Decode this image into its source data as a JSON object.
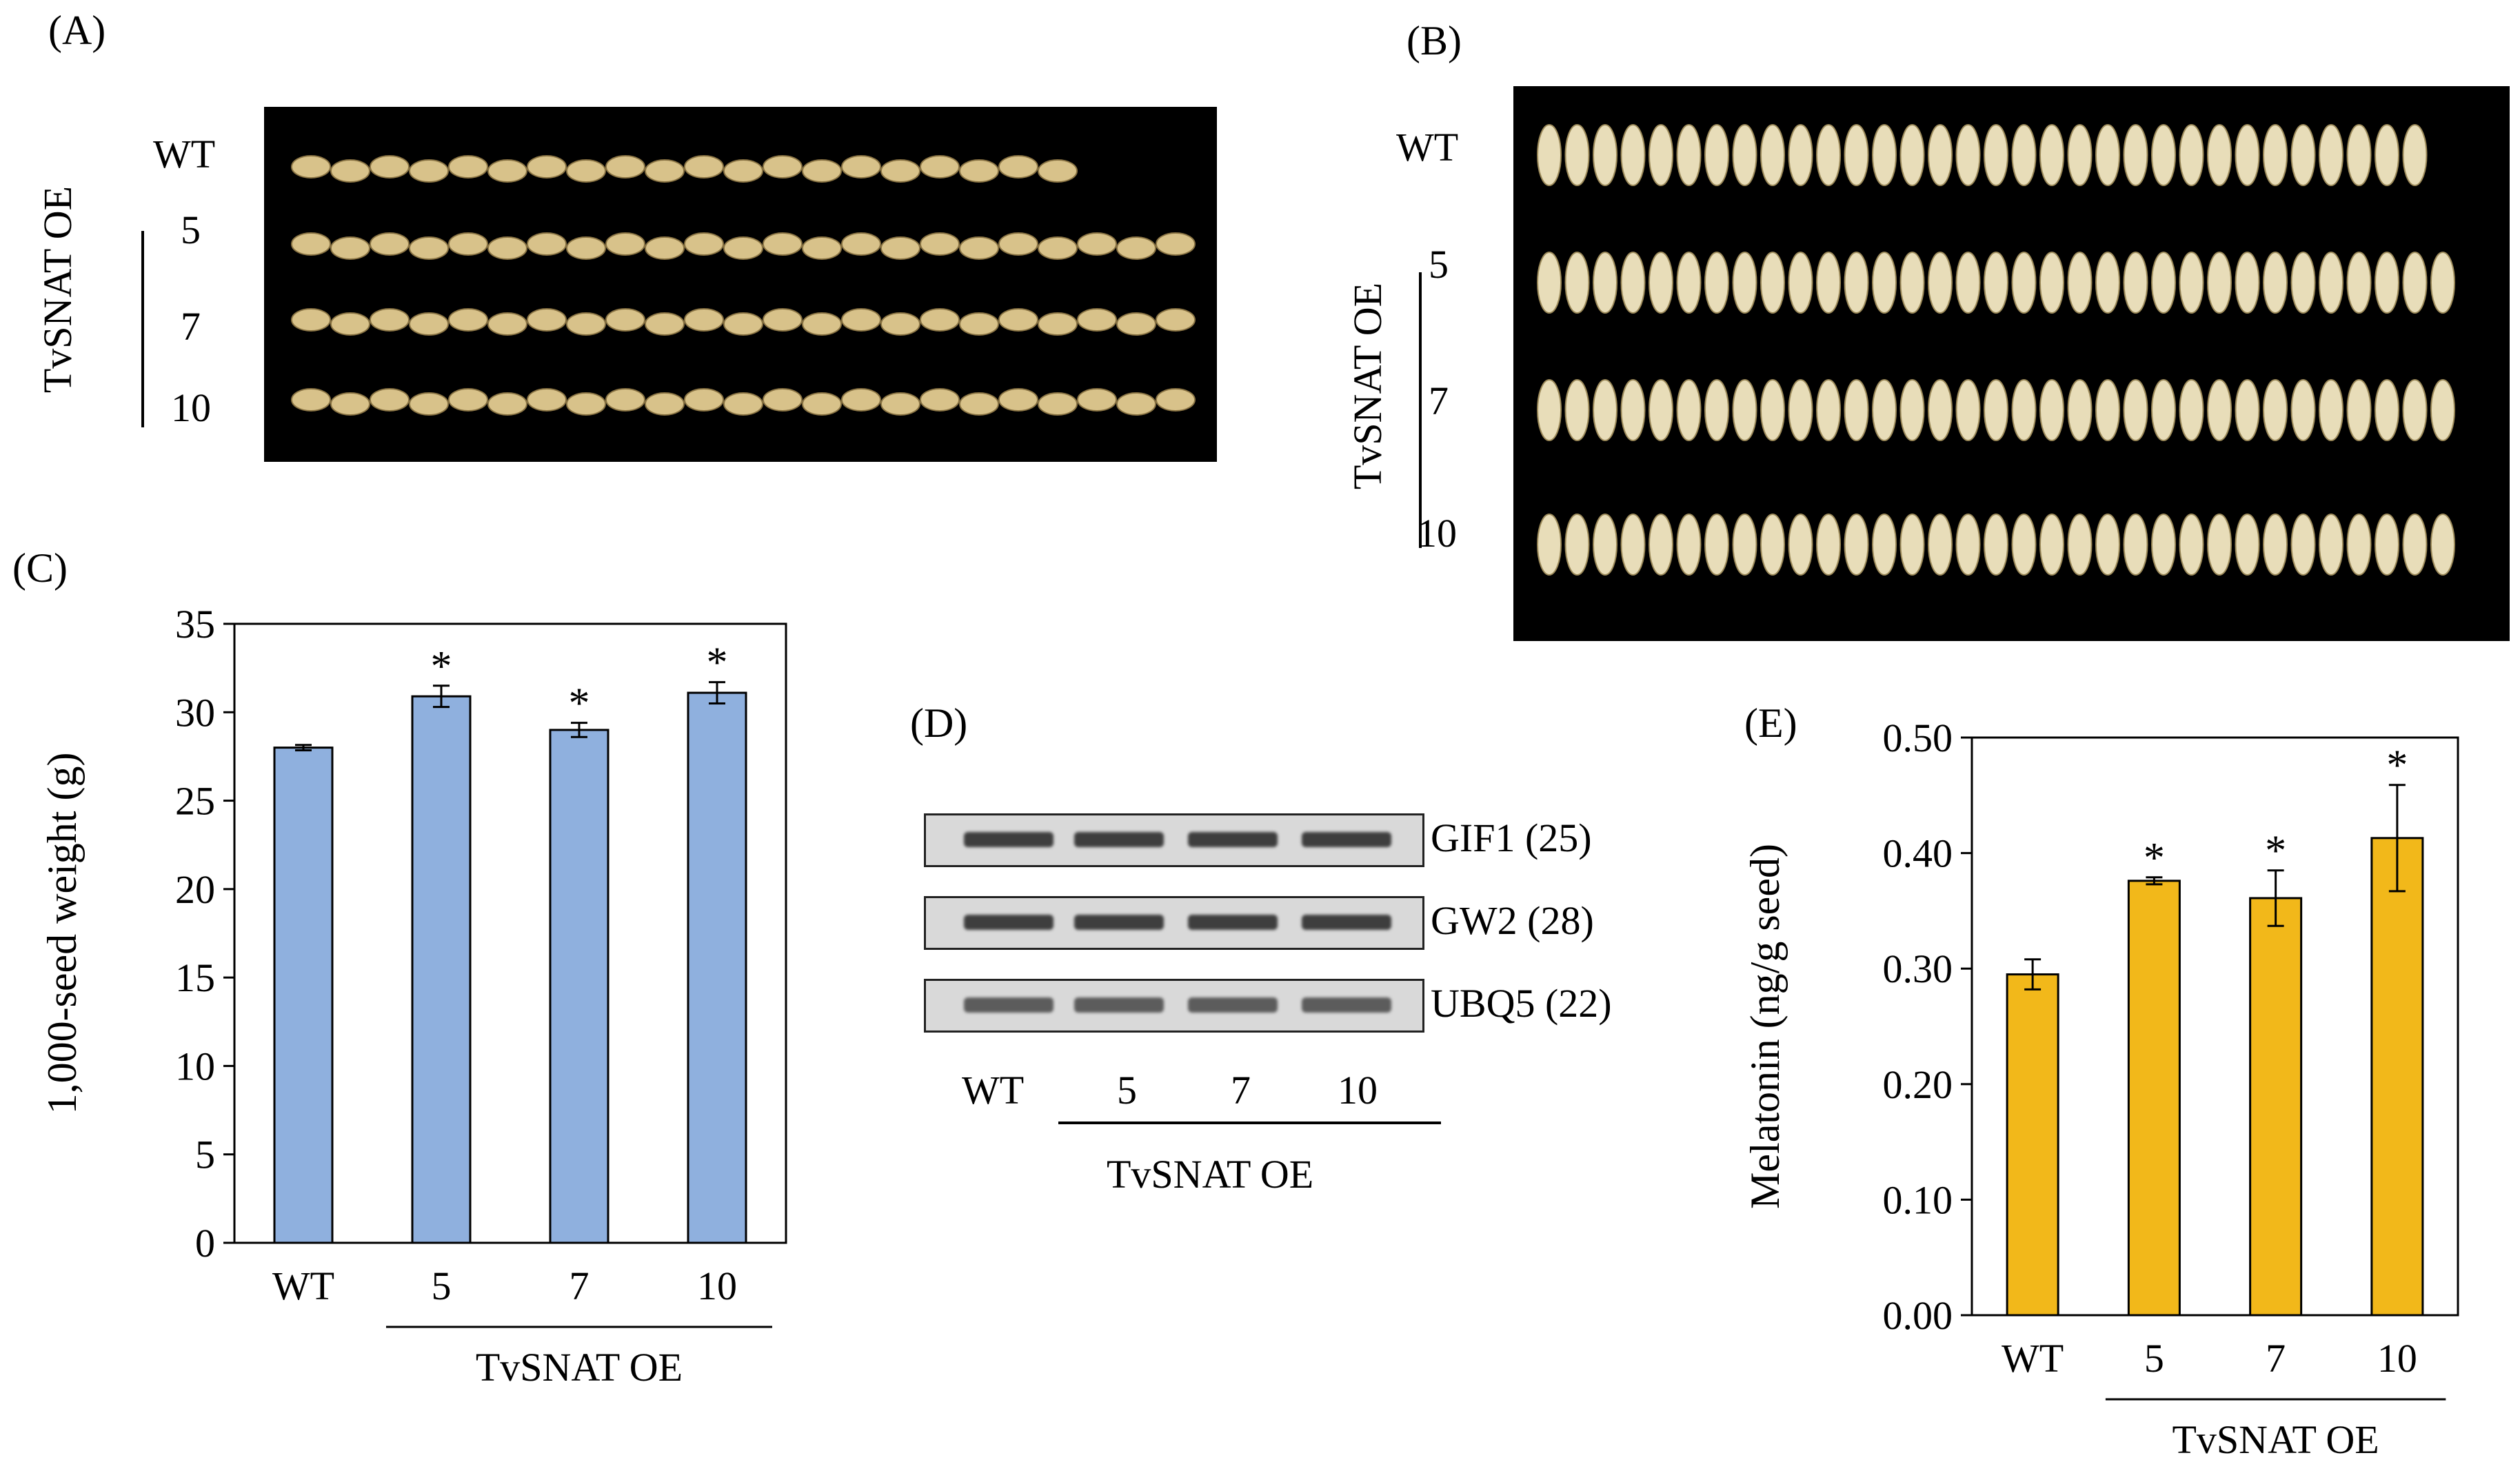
{
  "panels": {
    "A": {
      "label": "(A)",
      "rows": [
        "WT",
        "5",
        "7",
        "10"
      ],
      "group_label": "TvSNAT OE",
      "grain_counts": [
        20,
        23,
        23,
        23
      ],
      "grain_color": "#d8c28a"
    },
    "B": {
      "label": "(B)",
      "rows": [
        "WT",
        "5",
        "7",
        "10"
      ],
      "group_label": "TvSNAT OE",
      "grain_counts": [
        32,
        33,
        33,
        33
      ],
      "grain_color": "#e8ddb9"
    },
    "C": {
      "label": "(C)"
    },
    "D": {
      "label": "(D)",
      "bands": [
        "GIF1 (25)",
        "GW2 (28)",
        "UBQ5 (22)"
      ],
      "lanes": [
        "WT",
        "5",
        "7",
        "10"
      ],
      "group_label": "TvSNAT OE"
    },
    "E": {
      "label": "(E)"
    }
  },
  "chart_data": [
    {
      "type": "bar",
      "title": "",
      "ylabel": "1,000-seed weight (g)",
      "xlabel": "TvSNAT OE",
      "categories": [
        "WT",
        "5",
        "7",
        "10"
      ],
      "values": [
        28.0,
        30.9,
        29.0,
        31.1
      ],
      "errors": [
        0.15,
        0.6,
        0.4,
        0.6
      ],
      "significance": [
        "",
        "*",
        "*",
        "*"
      ],
      "ylim": [
        0,
        35
      ],
      "yticks": [
        "0",
        "5",
        "10",
        "15",
        "20",
        "25",
        "30",
        "35"
      ],
      "bar_color": "#8fb0de",
      "grid": false
    },
    {
      "type": "bar",
      "title": "",
      "ylabel": "Melatonin (ng/g seed)",
      "xlabel": "TvSNAT OE",
      "categories": [
        "WT",
        "5",
        "7",
        "10"
      ],
      "values": [
        0.295,
        0.376,
        0.361,
        0.413
      ],
      "errors": [
        0.013,
        0.003,
        0.024,
        0.046
      ],
      "significance": [
        "",
        "*",
        "*",
        "*"
      ],
      "ylim": [
        0,
        0.5
      ],
      "yticks": [
        "0.00",
        "0.10",
        "0.20",
        "0.30",
        "0.40",
        "0.50"
      ],
      "bar_color": "#f2b81a",
      "grid": false
    }
  ]
}
